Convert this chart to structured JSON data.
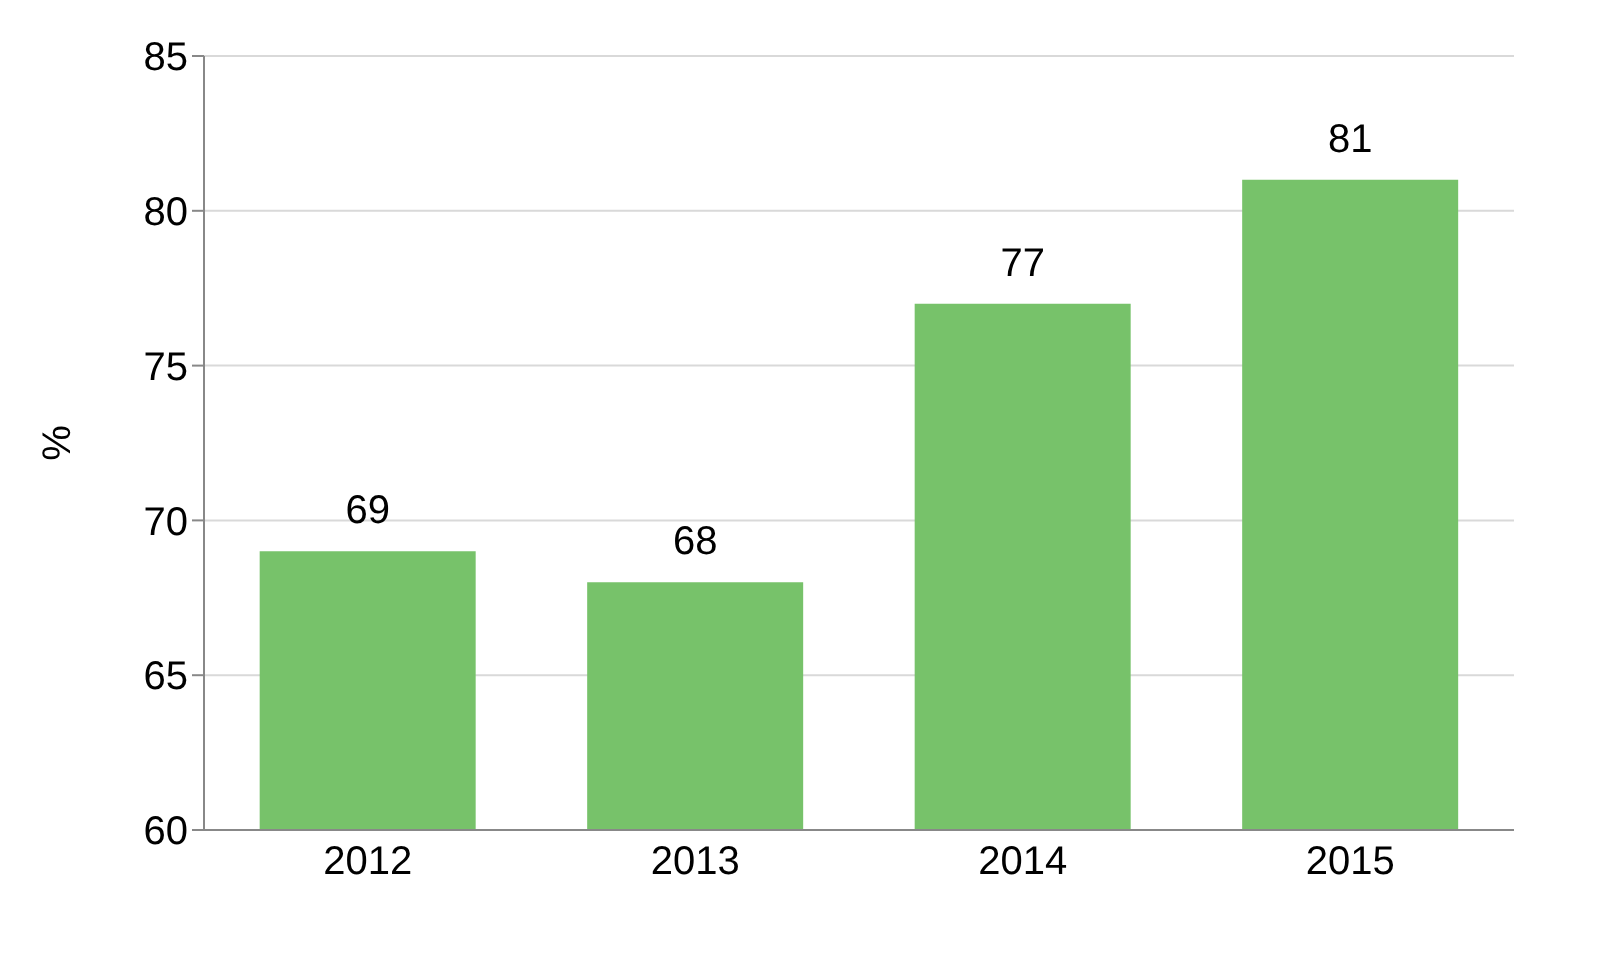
{
  "chart_data": {
    "type": "bar",
    "ylabel": "%",
    "categories": [
      "2012",
      "2013",
      "2014",
      "2015"
    ],
    "values": [
      69,
      68,
      77,
      81
    ],
    "color": "#77c26a",
    "ylim": [
      60,
      85
    ],
    "yticks": [
      60,
      65,
      70,
      75,
      80,
      85
    ],
    "grid": "y",
    "data_labels": true
  }
}
